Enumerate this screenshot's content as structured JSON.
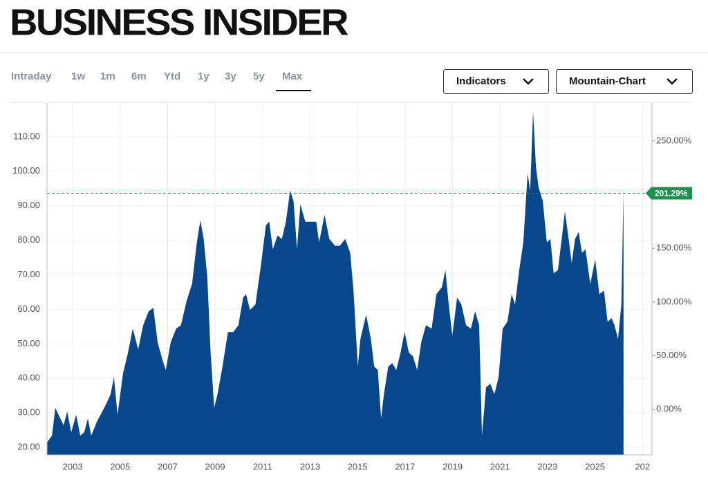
{
  "header": {
    "logo": "BUSINESS INSIDER"
  },
  "tabs": {
    "items": [
      "Intraday",
      "1w",
      "1m",
      "6m",
      "Ytd",
      "1y",
      "3y",
      "5y",
      "Max"
    ],
    "active_index": 8
  },
  "buttons": [
    "Indicators",
    "Mountain-Chart"
  ],
  "chart_data": {
    "type": "area",
    "color": "#08478c",
    "grid": true,
    "x": [
      2001.92,
      2002.13,
      2002.27,
      2002.48,
      2002.62,
      2002.77,
      2002.94,
      2003.15,
      2003.32,
      2003.49,
      2003.64,
      2003.78,
      2004.02,
      2004.25,
      2004.4,
      2004.6,
      2004.74,
      2004.89,
      2005.12,
      2005.33,
      2005.53,
      2005.76,
      2005.97,
      2006.2,
      2006.4,
      2006.58,
      2006.78,
      2006.92,
      2007.13,
      2007.36,
      2007.56,
      2007.8,
      2008.03,
      2008.23,
      2008.38,
      2008.52,
      2008.67,
      2008.81,
      2008.96,
      2009.1,
      2009.31,
      2009.54,
      2009.77,
      2009.98,
      2010.18,
      2010.3,
      2010.47,
      2010.7,
      2010.94,
      2011.14,
      2011.28,
      2011.43,
      2011.63,
      2011.81,
      2011.98,
      2012.16,
      2012.3,
      2012.45,
      2012.59,
      2012.8,
      2013.03,
      2013.26,
      2013.38,
      2013.61,
      2013.81,
      2014.05,
      2014.25,
      2014.48,
      2014.69,
      2014.83,
      2015.01,
      2015.12,
      2015.36,
      2015.56,
      2015.7,
      2015.85,
      2015.99,
      2016.11,
      2016.29,
      2016.46,
      2016.63,
      2016.81,
      2016.98,
      2017.16,
      2017.33,
      2017.51,
      2017.68,
      2017.88,
      2018.12,
      2018.32,
      2018.55,
      2018.7,
      2018.84,
      2018.99,
      2019.19,
      2019.37,
      2019.57,
      2019.77,
      2019.95,
      2020.12,
      2020.24,
      2020.41,
      2020.59,
      2020.76,
      2020.94,
      2021.11,
      2021.31,
      2021.49,
      2021.63,
      2021.81,
      2021.98,
      2022.16,
      2022.27,
      2022.39,
      2022.51,
      2022.62,
      2022.8,
      2022.97,
      2023.12,
      2023.26,
      2023.44,
      2023.58,
      2023.73,
      2023.87,
      2024.02,
      2024.16,
      2024.31,
      2024.45,
      2024.6,
      2024.8,
      2025.01,
      2025.18,
      2025.38,
      2025.53,
      2025.7,
      2025.82,
      2025.97,
      2026.11,
      2026.2
    ],
    "values": [
      21.4,
      23.4,
      31.4,
      28.4,
      26.4,
      30.4,
      24.4,
      29.4,
      23.4,
      24.4,
      28.4,
      23.4,
      27.4,
      30.4,
      32.4,
      35.4,
      40.4,
      29.4,
      41.4,
      47.4,
      54.4,
      48.4,
      55.4,
      59.4,
      60.4,
      50.4,
      45.4,
      42.4,
      50.4,
      54.4,
      55.4,
      62.4,
      67.4,
      79.4,
      85.8,
      80.4,
      69.4,
      47.4,
      31.4,
      35.4,
      43.4,
      53.4,
      53.4,
      55.4,
      63.4,
      64.4,
      59.8,
      61.4,
      73.4,
      84.4,
      85.4,
      77.4,
      81.4,
      80.4,
      85.4,
      94.4,
      91.4,
      77.4,
      90.4,
      85.4,
      85.4,
      85.4,
      79.4,
      87.4,
      80.4,
      78.4,
      78.4,
      80.4,
      76.4,
      65.4,
      43.4,
      51.4,
      58.4,
      51.4,
      43.4,
      42.4,
      28.4,
      35.4,
      43.4,
      44.4,
      42.4,
      47.4,
      53.4,
      47.4,
      46.4,
      42.4,
      50.4,
      55.4,
      54.4,
      64.4,
      66.4,
      71.4,
      61.4,
      52.4,
      63.4,
      61.4,
      55.4,
      54.4,
      59.4,
      55.4,
      23.4,
      37.4,
      38.4,
      35.4,
      40.4,
      54.4,
      56.4,
      64.4,
      61.4,
      71.4,
      79.4,
      99.4,
      94.4,
      117.4,
      101.4,
      95.4,
      91.4,
      79.4,
      80.4,
      70.4,
      71.4,
      79.4,
      88.4,
      81.4,
      73.4,
      80.4,
      82.4,
      76.4,
      77.4,
      67.4,
      74.4,
      64.4,
      65.4,
      56.4,
      57.4,
      55.4,
      51.4,
      61.4,
      93.8
    ],
    "xlim": [
      2001.92,
      2027.4
    ],
    "xticks": [
      2003,
      2005,
      2007,
      2009,
      2011,
      2013,
      2015,
      2017,
      2019,
      2021,
      2023,
      2025,
      {
        "value": 2027,
        "label": "202"
      }
    ],
    "ylim": [
      17.8,
      119.8
    ],
    "yticks": [
      {
        "value": 20,
        "label": "20.00"
      },
      {
        "value": 30,
        "label": "30.00"
      },
      {
        "value": 40,
        "label": "40.00"
      },
      {
        "value": 50,
        "label": "50.00"
      },
      {
        "value": 60,
        "label": "60.00"
      },
      {
        "value": 70,
        "label": "70.00"
      },
      {
        "value": 80,
        "label": "80.00"
      },
      {
        "value": 90,
        "label": "90.00"
      },
      {
        "value": 100,
        "label": "100.00"
      },
      {
        "value": 110,
        "label": "110.00"
      }
    ],
    "y2lim": [
      -42.4,
      285.3
    ],
    "y2ticks": [
      {
        "value": 0,
        "label": "0.00%"
      },
      {
        "value": 50,
        "label": "50.00%"
      },
      {
        "value": 100,
        "label": "100.00%"
      },
      {
        "value": 150,
        "label": "150.00%"
      },
      {
        "value": 250,
        "label": "250.00%"
      }
    ],
    "current": {
      "value": 201.29,
      "label": "201.29%",
      "axis": "y2",
      "color": "#1f8f4e"
    }
  }
}
